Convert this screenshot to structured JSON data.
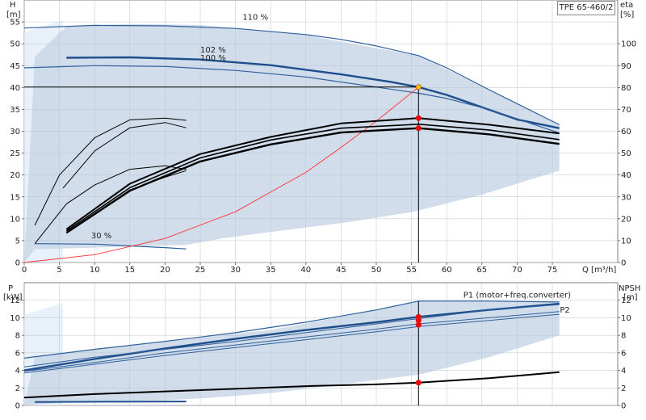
{
  "pump_model": "TPE 65-460/2",
  "chart_data": [
    {
      "id": "head_eff",
      "type": "line",
      "left_label": "H",
      "left_unit": "[m]",
      "right_label": "eta",
      "right_unit": "[%]",
      "xlabel": "Q [m³/h]",
      "xlim": [
        0,
        78
      ],
      "ylim_left": [
        0,
        60
      ],
      "ylim_right": [
        0,
        120
      ],
      "x_ticks": [
        0,
        5,
        10,
        15,
        20,
        25,
        30,
        35,
        40,
        45,
        50,
        55,
        60,
        65,
        70,
        75
      ],
      "left_ticks": [
        0,
        5,
        10,
        15,
        20,
        25,
        30,
        35,
        40,
        45,
        50,
        55
      ],
      "right_ticks": [
        0,
        10,
        20,
        30,
        40,
        50,
        60,
        70,
        80,
        90,
        100
      ],
      "curve_labels": [
        {
          "text": "110 %",
          "x": 31,
          "y": 55.5
        },
        {
          "text": "102 %",
          "x": 25,
          "y": 48
        },
        {
          "text": "100 %",
          "x": 25,
          "y": 46.2
        },
        {
          "text": "30 %",
          "x": 9.5,
          "y": 5.5
        }
      ],
      "envelope": [
        [
          0,
          0
        ],
        [
          1.5,
          47
        ],
        [
          6,
          54
        ],
        [
          15,
          54.5
        ],
        [
          25,
          54.3
        ],
        [
          40,
          52
        ],
        [
          50,
          49
        ],
        [
          56,
          47.3
        ],
        [
          66,
          39.5
        ],
        [
          76,
          31.5
        ],
        [
          76,
          21
        ],
        [
          65,
          15.5
        ],
        [
          55,
          11.5
        ],
        [
          45,
          9
        ],
        [
          35,
          7
        ],
        [
          28,
          5.5
        ],
        [
          23,
          4
        ],
        [
          1.5,
          3
        ],
        [
          0,
          0
        ]
      ],
      "series": [
        {
          "points": [
            [
              0,
              53.6
            ],
            [
              10,
              54.2
            ],
            [
              20,
              54.1
            ],
            [
              30,
              53.5
            ],
            [
              40,
              52.1
            ],
            [
              45,
              51
            ],
            [
              50,
              49.5
            ],
            [
              56,
              47.3
            ],
            [
              60,
              44.5
            ],
            [
              66,
              39.5
            ],
            [
              76,
              31.5
            ]
          ],
          "color": "#2f5f9c",
          "width": 1.2
        },
        {
          "points": [
            [
              6,
              46.8
            ],
            [
              15,
              46.9
            ],
            [
              25,
              46.4
            ],
            [
              35,
              45.1
            ],
            [
              45,
              43
            ],
            [
              52,
              41.3
            ],
            [
              56,
              40.1
            ],
            [
              60,
              38.3
            ],
            [
              65,
              35.5
            ],
            [
              70,
              32.7
            ],
            [
              76,
              30.7
            ]
          ],
          "color": "#1e4e8c",
          "width": 2.4
        },
        {
          "points": [
            [
              0,
              44.5
            ],
            [
              10,
              45
            ],
            [
              20,
              44.8
            ],
            [
              30,
              43.9
            ],
            [
              40,
              42.4
            ],
            [
              50,
              40.1
            ],
            [
              56,
              38.7
            ],
            [
              60,
              37.5
            ],
            [
              66,
              35
            ],
            [
              76,
              29.6
            ]
          ],
          "color": "#2f5f9c",
          "width": 1.2
        },
        {
          "points": [
            [
              1.5,
              4.3
            ],
            [
              10,
              4.2
            ],
            [
              20,
              3.4
            ],
            [
              23,
              3.1
            ]
          ],
          "color": "#2f5f9c",
          "width": 1.2
        },
        {
          "points": [
            [
              0,
              0
            ],
            [
              10,
              1.8
            ],
            [
              20,
              5.5
            ],
            [
              30,
              11.6
            ],
            [
              40,
              20.6
            ],
            [
              45,
              26.3
            ],
            [
              50,
              32.3
            ],
            [
              56,
              40.1
            ]
          ],
          "color": "#ff3030",
          "width": 0.9
        },
        {
          "points": [
            [
              56,
              0
            ],
            [
              56,
              40.1
            ]
          ],
          "color": "#000000",
          "width": 1
        },
        {
          "points": [
            [
              0,
              40.1
            ],
            [
              56,
              40.1
            ]
          ],
          "color": "#000000",
          "width": 1
        },
        {
          "points": [
            [
              5.5,
              17
            ],
            [
              10,
              25.5
            ],
            [
              15,
              30.8
            ],
            [
              20,
              32
            ],
            [
              23,
              30.8
            ]
          ],
          "color": "#000000",
          "width": 1
        },
        {
          "points": [
            [
              6,
              6.8
            ],
            [
              10,
              11.2
            ],
            [
              15,
              16.6
            ],
            [
              20,
              19.5
            ],
            [
              23,
              21
            ]
          ],
          "color": "#000000",
          "width": 1
        },
        {
          "points": [
            [
              1.5,
              4.3
            ],
            [
              6,
              13.4
            ],
            [
              10,
              17.7
            ],
            [
              15,
              21.3
            ],
            [
              20,
              22.1
            ],
            [
              23,
              21.3
            ]
          ],
          "color": "#000000",
          "width": 1
        },
        {
          "points": [
            [
              1.5,
              8.5
            ],
            [
              5,
              20
            ],
            [
              10,
              28.5
            ],
            [
              15,
              32.6
            ],
            [
              20,
              33
            ],
            [
              23,
              32.5
            ]
          ],
          "color": "#000000",
          "width": 1
        },
        {
          "points": [
            [
              6,
              7.6
            ],
            [
              15,
              18
            ],
            [
              25,
              24.8
            ],
            [
              35,
              28.7
            ],
            [
              45,
              31.8
            ],
            [
              56,
              33
            ],
            [
              66,
              31.5
            ],
            [
              76,
              29.5
            ]
          ],
          "color": "#000000",
          "width": 2
        },
        {
          "points": [
            [
              6,
              7.2
            ],
            [
              15,
              17.1
            ],
            [
              25,
              23.9
            ],
            [
              35,
              28
            ],
            [
              45,
              30.7
            ],
            [
              56,
              31.6
            ],
            [
              66,
              30.3
            ],
            [
              76,
              28.1
            ]
          ],
          "color": "#000000",
          "width": 1.6
        },
        {
          "points": [
            [
              6,
              6.8
            ],
            [
              15,
              16.4
            ],
            [
              25,
              23.1
            ],
            [
              35,
              27
            ],
            [
              45,
              29.7
            ],
            [
              56,
              30.7
            ],
            [
              66,
              29.3
            ],
            [
              76,
              27.1
            ]
          ],
          "color": "#000000",
          "width": 2.4
        }
      ],
      "markers": [
        {
          "x": 56,
          "y": 40.1,
          "color": "#f5c000"
        },
        {
          "x": 56,
          "y": 33,
          "color": "#ff0000"
        },
        {
          "x": 56,
          "y": 30.7,
          "color": "#ff0000"
        }
      ]
    },
    {
      "id": "power_npsh",
      "type": "line",
      "left_label": "P",
      "left_unit": "[kW]",
      "right_label": "NPSH",
      "right_unit": "[m]",
      "xlim": [
        0,
        78
      ],
      "ylim_left": [
        0,
        14
      ],
      "ylim_right": [
        0,
        14
      ],
      "left_ticks": [
        0,
        2,
        4,
        6,
        8,
        10,
        12
      ],
      "right_ticks": [
        0,
        2,
        4,
        6,
        8,
        10,
        12
      ],
      "curve_labels": [
        {
          "text": "P1 (motor+freq.converter)",
          "x": 70,
          "y": 12.3
        },
        {
          "text": "P2",
          "x": 77.5,
          "y": 10.6
        }
      ],
      "envelope": [
        [
          0,
          0
        ],
        [
          1.5,
          5.5
        ],
        [
          6,
          6
        ],
        [
          20,
          7.4
        ],
        [
          35,
          8.6
        ],
        [
          45,
          10.1
        ],
        [
          56,
          11.9
        ],
        [
          66,
          11.9
        ],
        [
          76,
          11.8
        ],
        [
          76,
          8
        ],
        [
          66,
          5.5
        ],
        [
          56,
          3.5
        ],
        [
          45,
          2.4
        ],
        [
          35,
          1.4
        ],
        [
          25,
          0.8
        ],
        [
          20,
          0.6
        ],
        [
          6,
          0.4
        ],
        [
          0,
          0
        ]
      ],
      "series": [
        {
          "points": [
            [
              0,
              5.4
            ],
            [
              10,
              6.4
            ],
            [
              20,
              7.3
            ],
            [
              30,
              8.3
            ],
            [
              40,
              9.5
            ],
            [
              50,
              10.9
            ],
            [
              56,
              11.9
            ],
            [
              66,
              11.9
            ],
            [
              76,
              11.8
            ]
          ],
          "color": "#2f5f9c",
          "width": 1.2
        },
        {
          "points": [
            [
              0,
              4
            ],
            [
              10,
              5.3
            ],
            [
              20,
              6.5
            ],
            [
              30,
              7.6
            ],
            [
              40,
              8.6
            ],
            [
              50,
              9.5
            ],
            [
              56,
              10.1
            ],
            [
              66,
              10.9
            ],
            [
              76,
              11.6
            ]
          ],
          "color": "#1e4e8c",
          "width": 2.4
        },
        {
          "points": [
            [
              0,
              4.4
            ],
            [
              10,
              5.5
            ],
            [
              20,
              6.4
            ],
            [
              30,
              7.3
            ],
            [
              40,
              8.3
            ],
            [
              50,
              9.3
            ],
            [
              56,
              9.9
            ],
            [
              66,
              10.9
            ],
            [
              76,
              11.5
            ]
          ],
          "color": "#2f5f9c",
          "width": 1
        },
        {
          "points": [
            [
              0,
              3.9
            ],
            [
              10,
              4.9
            ],
            [
              20,
              6
            ],
            [
              30,
              6.9
            ],
            [
              40,
              7.8
            ],
            [
              50,
              8.7
            ],
            [
              56,
              9.3
            ],
            [
              66,
              10
            ],
            [
              76,
              10.7
            ]
          ],
          "color": "#2f5f9c",
          "width": 1
        },
        {
          "points": [
            [
              0,
              3.7
            ],
            [
              10,
              4.7
            ],
            [
              20,
              5.7
            ],
            [
              30,
              6.6
            ],
            [
              40,
              7.5
            ],
            [
              50,
              8.4
            ],
            [
              56,
              9
            ],
            [
              66,
              9.7
            ],
            [
              76,
              10.4
            ]
          ],
          "color": "#2f5f9c",
          "width": 1
        },
        {
          "points": [
            [
              1.5,
              0.4
            ],
            [
              23,
              0.45
            ]
          ],
          "color": "#1e4e8c",
          "width": 2
        },
        {
          "points": [
            [
              56,
              0
            ],
            [
              56,
              11.9
            ]
          ],
          "color": "#000000",
          "width": 1
        },
        {
          "points": [
            [
              0,
              0.9
            ],
            [
              10,
              1.3
            ],
            [
              20,
              1.6
            ],
            [
              30,
              1.9
            ],
            [
              40,
              2.2
            ],
            [
              50,
              2.4
            ],
            [
              56,
              2.6
            ],
            [
              66,
              3.1
            ],
            [
              76,
              3.8
            ]
          ],
          "color": "#000000",
          "width": 2
        }
      ],
      "markers": [
        {
          "x": 56,
          "y": 10.1,
          "color": "#ff0000"
        },
        {
          "x": 56,
          "y": 9.7,
          "color": "#ff0000"
        },
        {
          "x": 56,
          "y": 9.2,
          "color": "#ff0000"
        },
        {
          "x": 56,
          "y": 2.6,
          "color": "#ff0000"
        }
      ]
    }
  ]
}
